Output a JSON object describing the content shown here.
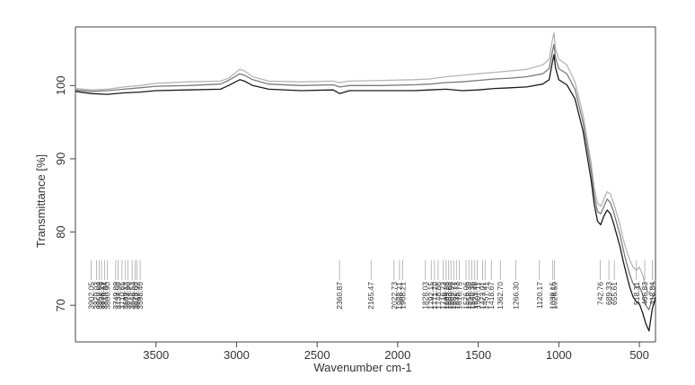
{
  "chart_data": {
    "type": "line",
    "title": "",
    "xlabel": "Wavenumber cm-1",
    "ylabel": "Transmittance [%]",
    "x_reversed": true,
    "xlim": [
      4000,
      400
    ],
    "ylim": [
      65,
      108
    ],
    "x_ticks": [
      3500,
      3000,
      2500,
      2000,
      1500,
      1000,
      500
    ],
    "y_ticks": [
      70,
      80,
      90,
      100
    ],
    "grid": false,
    "series": [
      {
        "color": "#b5b5b5",
        "x": [
          4000,
          3900,
          3800,
          3700,
          3600,
          3500,
          3300,
          3100,
          3050,
          2980,
          2950,
          2900,
          2800,
          2600,
          2400,
          2360,
          2300,
          2100,
          1900,
          1800,
          1700,
          1600,
          1500,
          1400,
          1300,
          1200,
          1100,
          1060,
          1040,
          1030,
          1020,
          1000,
          950,
          900,
          850,
          800,
          780,
          760,
          740,
          720,
          700,
          680,
          660,
          640,
          620,
          600,
          580,
          560,
          540,
          520,
          500,
          480,
          460,
          440,
          420,
          400
        ],
        "y": [
          99.6,
          99.4,
          99.5,
          99.8,
          100.0,
          100.3,
          100.5,
          100.6,
          101.0,
          102.2,
          102.0,
          101.2,
          100.6,
          100.5,
          100.6,
          100.4,
          100.6,
          100.7,
          100.8,
          100.9,
          101.2,
          101.4,
          101.6,
          101.8,
          102.0,
          102.2,
          102.8,
          103.6,
          106.2,
          107.2,
          105.0,
          103.6,
          102.8,
          100.5,
          96.0,
          89.5,
          86.0,
          84.0,
          83.5,
          84.5,
          85.5,
          85.2,
          84.0,
          82.5,
          81.0,
          79.0,
          77.5,
          76.2,
          75.2,
          74.8,
          75.2,
          74.2,
          72.5,
          71.5,
          72.8,
          73.5
        ]
      },
      {
        "color": "#7a7a7a",
        "x": [
          4000,
          3900,
          3800,
          3700,
          3600,
          3500,
          3300,
          3100,
          3050,
          2980,
          2950,
          2900,
          2800,
          2600,
          2400,
          2360,
          2300,
          2100,
          1900,
          1800,
          1700,
          1600,
          1500,
          1400,
          1300,
          1200,
          1100,
          1060,
          1040,
          1030,
          1020,
          1000,
          950,
          900,
          850,
          800,
          780,
          760,
          740,
          720,
          700,
          680,
          660,
          640,
          620,
          600,
          580,
          560,
          540,
          520,
          500,
          480,
          460,
          440,
          420,
          400
        ],
        "y": [
          99.4,
          99.2,
          99.3,
          99.5,
          99.7,
          99.9,
          100.0,
          100.2,
          100.7,
          101.6,
          101.4,
          100.8,
          100.2,
          100.0,
          100.1,
          99.8,
          100.0,
          100.0,
          100.1,
          100.2,
          100.4,
          100.5,
          100.7,
          100.9,
          101.0,
          101.2,
          101.6,
          102.3,
          104.6,
          105.6,
          103.8,
          102.3,
          101.6,
          99.5,
          95.0,
          88.5,
          85.0,
          82.8,
          82.5,
          83.5,
          84.5,
          84.0,
          82.8,
          81.2,
          79.6,
          77.6,
          75.8,
          74.2,
          73.0,
          72.4,
          72.6,
          71.5,
          70.0,
          69.4,
          71.0,
          71.8
        ]
      },
      {
        "color": "#1a1a1a",
        "x": [
          4000,
          3900,
          3800,
          3700,
          3600,
          3500,
          3300,
          3100,
          3050,
          2980,
          2950,
          2900,
          2800,
          2600,
          2400,
          2360,
          2300,
          2100,
          1900,
          1800,
          1700,
          1600,
          1500,
          1400,
          1300,
          1200,
          1100,
          1060,
          1040,
          1030,
          1020,
          1000,
          950,
          900,
          850,
          800,
          780,
          760,
          740,
          720,
          700,
          680,
          660,
          640,
          620,
          600,
          580,
          560,
          540,
          520,
          500,
          480,
          460,
          440,
          420,
          400
        ],
        "y": [
          99.2,
          98.9,
          98.8,
          99.0,
          99.1,
          99.3,
          99.4,
          99.5,
          100.0,
          100.8,
          100.6,
          100.0,
          99.5,
          99.3,
          99.4,
          98.9,
          99.3,
          99.3,
          99.3,
          99.4,
          99.5,
          99.3,
          99.4,
          99.6,
          99.7,
          99.8,
          100.2,
          100.8,
          103.2,
          104.2,
          102.4,
          100.8,
          100.1,
          98.2,
          93.8,
          87.2,
          83.8,
          81.5,
          81.0,
          82.2,
          83.0,
          82.5,
          81.2,
          79.6,
          78.0,
          76.0,
          74.2,
          72.5,
          71.2,
          70.5,
          70.2,
          69.0,
          67.5,
          66.5,
          69.5,
          71.0
        ]
      }
    ],
    "peak_labels": [
      "3902.05",
      "3870.03",
      "3852.69",
      "3838.19",
      "3819.94",
      "3800.90",
      "3749.89",
      "3734.50",
      "3710.65",
      "3689.13",
      "3674.90",
      "3648.53",
      "3628.60",
      "3617.92",
      "3598.40",
      "2360.87",
      "2165.47",
      "2022.73",
      "1988.71",
      "1968.21",
      "1828.03",
      "1792.15",
      "1771.70",
      "1748.86",
      "1716.73",
      "1699.26",
      "1683.28",
      "1669.98",
      "1652.77",
      "1635.73",
      "1616.75",
      "1576.06",
      "1558.30",
      "1540.36",
      "1521.40",
      "1507.11",
      "1473.01",
      "1457.41",
      "1418.67",
      "1362.70",
      "1266.30",
      "1120.17",
      "1039.15",
      "1026.59",
      "742.76",
      "689.33",
      "655.61",
      "518.31",
      "466.83",
      "418.84"
    ],
    "peak_x": [
      3902.05,
      3870.03,
      3852.69,
      3838.19,
      3819.94,
      3800.9,
      3749.89,
      3734.5,
      3710.65,
      3689.13,
      3674.9,
      3648.53,
      3628.6,
      3617.92,
      3598.4,
      2360.87,
      2165.47,
      2022.73,
      1988.71,
      1968.21,
      1828.03,
      1792.15,
      1771.7,
      1748.86,
      1716.73,
      1699.26,
      1683.28,
      1669.98,
      1652.77,
      1635.73,
      1616.75,
      1576.06,
      1558.3,
      1540.36,
      1521.4,
      1507.11,
      1473.01,
      1457.41,
      1418.67,
      1362.7,
      1266.3,
      1120.17,
      1039.15,
      1026.59,
      742.76,
      689.33,
      655.61,
      518.31,
      466.83,
      418.84
    ]
  }
}
